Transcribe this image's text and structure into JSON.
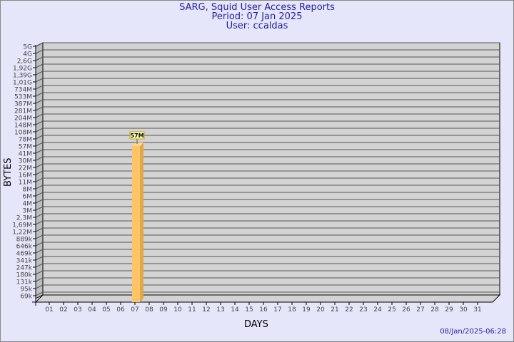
{
  "header": {
    "title": "SARG, Squid User Access Reports",
    "period": "Period: 07 Jan 2025",
    "user": "User: ccaldas"
  },
  "timestamp": "08/Jan/2025-06:28",
  "colors": {
    "background": "#e6e6fa",
    "wall": "#d3d3d3",
    "bar": "#ffc466",
    "bar_side": "#e0a84a",
    "title": "#1f1fa0"
  },
  "chart_data": {
    "type": "bar",
    "title": "SARG, Squid User Access Reports",
    "xlabel": "DAYS",
    "ylabel": "BYTES",
    "y_scale": "log",
    "grid": true,
    "y_ticks": [
      "5G",
      "4G",
      "2,6G",
      "1,92G",
      "1,39G",
      "1,01G",
      "734M",
      "533M",
      "387M",
      "281M",
      "204M",
      "148M",
      "108M",
      "78M",
      "57M",
      "41M",
      "30M",
      "22M",
      "16M",
      "11M",
      "8M",
      "6M",
      "4M",
      "3M",
      "2,3M",
      "1,69M",
      "1,22M",
      "889k",
      "646k",
      "469k",
      "341k",
      "247k",
      "180k",
      "131k",
      "95k",
      "69k"
    ],
    "categories": [
      "01",
      "02",
      "03",
      "04",
      "05",
      "06",
      "07",
      "08",
      "09",
      "10",
      "11",
      "12",
      "13",
      "14",
      "15",
      "16",
      "17",
      "18",
      "19",
      "20",
      "21",
      "22",
      "23",
      "24",
      "25",
      "26",
      "27",
      "28",
      "29",
      "30",
      "31"
    ],
    "values": [
      null,
      null,
      null,
      null,
      null,
      null,
      "57M",
      null,
      null,
      null,
      null,
      null,
      null,
      null,
      null,
      null,
      null,
      null,
      null,
      null,
      null,
      null,
      null,
      null,
      null,
      null,
      null,
      null,
      null,
      null,
      null
    ],
    "data_labels": {
      "07": "57M"
    }
  }
}
